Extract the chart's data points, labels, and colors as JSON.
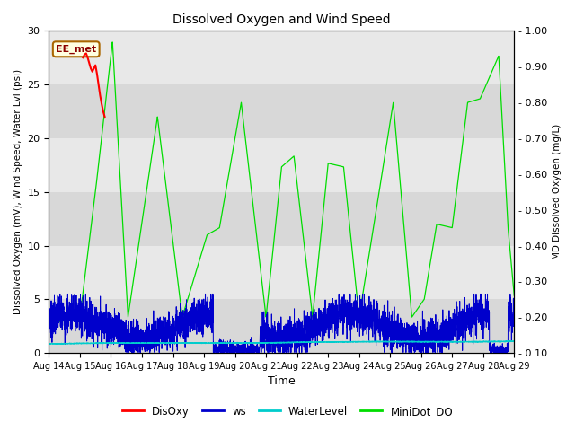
{
  "title": "Dissolved Oxygen and Wind Speed",
  "xlabel": "Time",
  "ylabel_left": "Dissolved Oxygen (mV), Wind Speed, Water Lvl (psi)",
  "ylabel_right": "MD Dissolved Oxygen (mg/L)",
  "annotation": "EE_met",
  "ylim_left": [
    0,
    30
  ],
  "ylim_right": [
    0.1,
    1.0
  ],
  "yticks_left": [
    0,
    5,
    10,
    15,
    20,
    25,
    30
  ],
  "yticks_right": [
    0.1,
    0.2,
    0.3,
    0.4,
    0.5,
    0.6,
    0.7,
    0.8,
    0.9,
    1.0
  ],
  "bg_bands": [
    [
      0,
      5,
      "#d8d8d8"
    ],
    [
      5,
      10,
      "#e8e8e8"
    ],
    [
      10,
      15,
      "#d8d8d8"
    ],
    [
      15,
      20,
      "#e8e8e8"
    ],
    [
      20,
      25,
      "#d8d8d8"
    ],
    [
      25,
      30,
      "#e8e8e8"
    ]
  ],
  "colors": {
    "DisOxy": "#ff0000",
    "ws": "#0000cc",
    "WaterLevel": "#00cccc",
    "MiniDot_DO": "#00dd00"
  },
  "legend_entries": [
    "DisOxy",
    "ws",
    "WaterLevel",
    "MiniDot_DO"
  ],
  "xtick_labels": [
    "Aug 14",
    "Aug 15",
    "Aug 16",
    "Aug 17",
    "Aug 18",
    "Aug 19",
    "Aug 20",
    "Aug 21",
    "Aug 22",
    "Aug 23",
    "Aug 24",
    "Aug 25",
    "Aug 26",
    "Aug 27",
    "Aug 28",
    "Aug 29"
  ]
}
